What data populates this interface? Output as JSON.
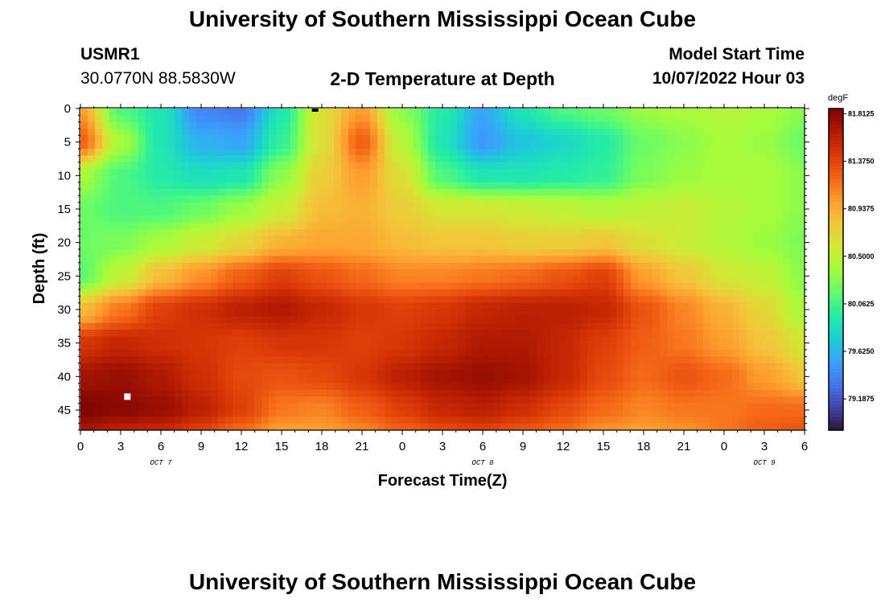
{
  "header": {
    "title": "University of Southern Mississippi Ocean Cube",
    "station_id": "USMR1",
    "coordinates": "30.0770N  88.5830W",
    "plot_title": "2-D Temperature at Depth",
    "model_start_label": "Model Start Time",
    "model_start_value": "10/07/2022 Hour 03"
  },
  "footer": {
    "title": "University of Southern Mississippi Ocean Cube"
  },
  "chart_data": {
    "type": "heatmap",
    "title": "2-D Temperature at Depth",
    "xlabel": "Forecast Time(Z)",
    "ylabel": "Depth (ft)",
    "x_tick_labels": [
      "0",
      "3",
      "6",
      "9",
      "12",
      "15",
      "18",
      "21",
      "0",
      "3",
      "6",
      "9",
      "12",
      "15",
      "18",
      "21",
      "0",
      "3",
      "6"
    ],
    "date_labels": [
      "OCT 7",
      "OCT 8",
      "OCT 9"
    ],
    "ylim": [
      0,
      48
    ],
    "y_ticks": [
      0,
      5,
      10,
      15,
      20,
      25,
      30,
      35,
      40,
      45
    ],
    "colorbar": {
      "unit": "degF",
      "tick_labels": [
        "81.8125",
        "81.3750",
        "80.9375",
        "80.5000",
        "80.0625",
        "79.6250",
        "79.1875"
      ],
      "vmin": 78.9,
      "vmax": 81.86,
      "colormap": [
        "#30123b",
        "#4145ab",
        "#4675ed",
        "#39a2fc",
        "#1bcfd4",
        "#24eca6",
        "#61fc6c",
        "#a4fc3b",
        "#d1e834",
        "#f3c63a",
        "#fe9b2d",
        "#f36315",
        "#d93806",
        "#b11901",
        "#7a0403"
      ]
    },
    "x_hours": [
      0,
      3,
      6,
      9,
      12,
      15,
      18,
      21,
      24,
      27,
      30,
      33,
      36,
      39,
      42,
      45,
      48,
      51,
      54
    ],
    "depths": [
      0,
      5,
      10,
      15,
      20,
      25,
      30,
      35,
      40,
      45,
      48
    ],
    "values": [
      [
        81.0,
        80.1,
        79.9,
        79.4,
        79.35,
        79.9,
        80.65,
        81.0,
        80.3,
        79.95,
        79.55,
        79.9,
        80.1,
        80.2,
        80.35,
        80.4,
        80.45,
        80.4,
        80.3
      ],
      [
        81.25,
        80.4,
        79.9,
        79.6,
        79.55,
        80.0,
        80.65,
        81.25,
        80.45,
        79.9,
        79.5,
        79.7,
        79.8,
        79.95,
        80.2,
        80.3,
        80.4,
        80.35,
        80.2
      ],
      [
        80.4,
        80.1,
        79.95,
        79.85,
        79.9,
        80.3,
        80.75,
        81.0,
        80.65,
        80.1,
        79.9,
        79.9,
        79.95,
        80.0,
        80.25,
        80.35,
        80.4,
        80.4,
        80.3
      ],
      [
        80.2,
        80.1,
        80.1,
        80.2,
        80.35,
        80.55,
        80.85,
        80.9,
        80.75,
        80.6,
        80.6,
        80.55,
        80.5,
        80.45,
        80.5,
        80.55,
        80.45,
        80.4,
        80.3
      ],
      [
        80.2,
        80.25,
        80.4,
        80.55,
        80.7,
        80.9,
        80.95,
        80.95,
        80.85,
        80.8,
        80.8,
        80.75,
        80.75,
        80.8,
        80.65,
        80.55,
        80.45,
        80.35,
        80.25
      ],
      [
        80.15,
        80.5,
        80.85,
        81.05,
        81.25,
        81.4,
        81.3,
        81.2,
        81.1,
        81.1,
        81.15,
        81.2,
        81.3,
        81.4,
        81.0,
        80.8,
        80.6,
        80.5,
        80.3
      ],
      [
        80.85,
        81.15,
        81.4,
        81.5,
        81.6,
        81.65,
        81.55,
        81.45,
        81.4,
        81.45,
        81.55,
        81.6,
        81.6,
        81.55,
        81.3,
        81.1,
        80.9,
        80.7,
        80.4
      ],
      [
        81.45,
        81.55,
        81.5,
        81.45,
        81.4,
        81.45,
        81.45,
        81.4,
        81.45,
        81.55,
        81.65,
        81.65,
        81.55,
        81.4,
        81.25,
        81.15,
        81.0,
        80.8,
        80.6
      ],
      [
        81.7,
        81.75,
        81.65,
        81.5,
        81.35,
        81.3,
        81.35,
        81.45,
        81.6,
        81.7,
        81.75,
        81.7,
        81.55,
        81.35,
        81.2,
        81.3,
        81.2,
        81.0,
        80.8
      ],
      [
        81.85,
        81.8,
        81.75,
        81.6,
        81.4,
        81.15,
        81.1,
        81.25,
        81.4,
        81.55,
        81.6,
        81.5,
        81.35,
        81.2,
        81.1,
        81.15,
        81.15,
        81.2,
        81.2
      ],
      [
        81.7,
        81.6,
        81.55,
        81.4,
        81.2,
        81.0,
        81.0,
        81.1,
        81.25,
        81.35,
        81.4,
        81.3,
        81.2,
        81.05,
        81.0,
        81.05,
        81.15,
        81.25,
        81.3
      ]
    ],
    "markers": [
      {
        "hour": 3.5,
        "depth": 43.0,
        "color": "#ffffff"
      },
      {
        "hour": 17.5,
        "depth": 0.0,
        "color": "#000000"
      }
    ]
  }
}
